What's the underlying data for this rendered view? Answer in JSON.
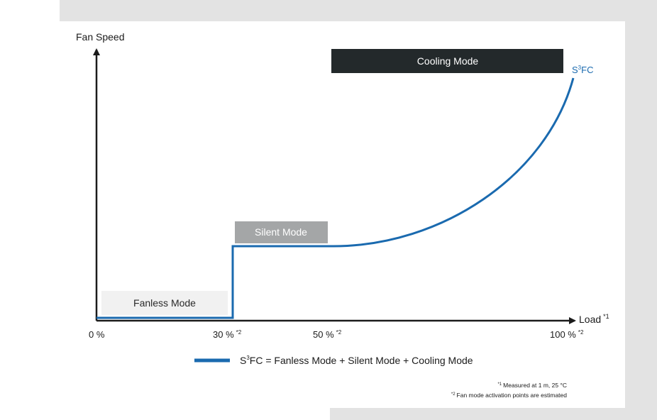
{
  "y_axis_label": "Fan Speed",
  "x_axis_label": "Load",
  "x_axis_label_sup": "*1",
  "curve_label_main": "S",
  "curve_label_sup": "3",
  "curve_label_tail": "FC",
  "modes": {
    "fanless": "Fanless Mode",
    "silent": "Silent Mode",
    "cooling": "Cooling Mode"
  },
  "ticks": [
    {
      "label": "0 %",
      "sup": ""
    },
    {
      "label": "30 %",
      "sup": "*2"
    },
    {
      "label": "50 %",
      "sup": "*2"
    },
    {
      "label": "100 %",
      "sup": "*2"
    }
  ],
  "legend": {
    "main": "S",
    "sup": "3",
    "rest": "FC = Fanless Mode + Silent Mode + Cooling Mode"
  },
  "footnotes": {
    "note1_mark": "*1",
    "note1": "Measured at 1 m, 25 °C",
    "note2_mark": "*2",
    "note2": "Fan mode activation points are estimated"
  },
  "colors": {
    "curve": "#1a6aaf",
    "axis": "#1b1b1b",
    "cooling_box": "#23292b",
    "silent_box": "#a4a6a7",
    "fanless_box": "#f1f1f1"
  }
}
